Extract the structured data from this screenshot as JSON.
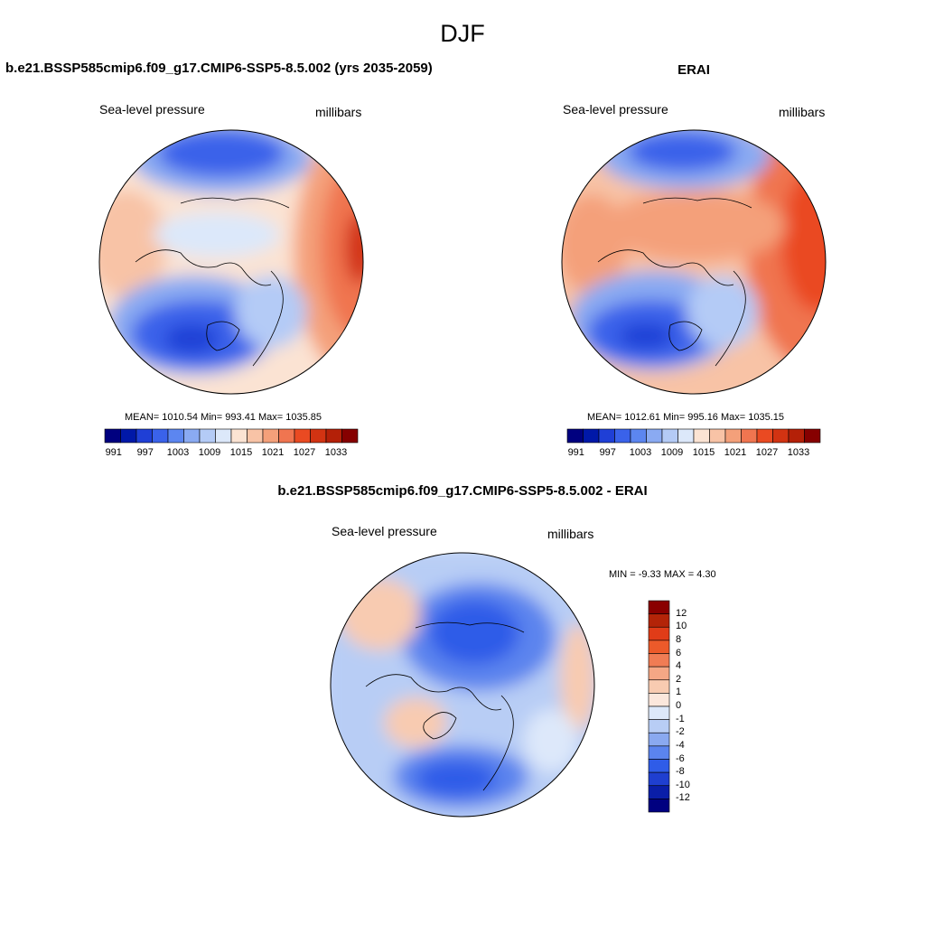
{
  "figure": {
    "title": "DJF"
  },
  "panel_model": {
    "title": "b.e21.BSSP585cmip6.f09_g17.CMIP6-SSP5-8.5.002 (yrs 2035-2059)",
    "left_label": "Sea-level pressure",
    "right_label": "millibars",
    "stats": "MEAN= 1010.54  Min= 993.41  Max= 1035.85"
  },
  "panel_obs": {
    "title": "ERAI",
    "left_label": "Sea-level pressure",
    "right_label": "millibars",
    "stats": "MEAN= 1012.61  Min= 995.16  Max= 1035.15"
  },
  "panel_diff": {
    "title": "b.e21.BSSP585cmip6.f09_g17.CMIP6-SSP5-8.5.002 - ERAI",
    "left_label": "Sea-level pressure",
    "right_label": "millibars",
    "stats": "MIN =  -9.33 MAX =   4.30"
  },
  "colorbar_abs": {
    "colors": [
      "#00007f",
      "#0018a8",
      "#1f3fd6",
      "#3a62ea",
      "#5c86f0",
      "#8aaaf2",
      "#b4cbf6",
      "#dce8fa",
      "#fbe3d3",
      "#f8c3a6",
      "#f4a07a",
      "#f07550",
      "#ea4a22",
      "#d23312",
      "#b42008",
      "#860000"
    ],
    "tick_labels": [
      "991",
      "997",
      "1003",
      "1009",
      "1015",
      "1021",
      "1027",
      "1033"
    ]
  },
  "colorbar_diff": {
    "colors": [
      "#000080",
      "#0a1ea8",
      "#1f3fd0",
      "#2f5ce8",
      "#5b84ee",
      "#8aa9f0",
      "#b8cdf5",
      "#dde8fa",
      "#fbe7dc",
      "#f8cbb1",
      "#f5a785",
      "#f07c54",
      "#ec5a2a",
      "#e03c18",
      "#b32408",
      "#8a0000"
    ],
    "tick_labels": [
      "12",
      "10",
      "8",
      "6",
      "4",
      "2",
      "1",
      "0",
      "-1",
      "-2",
      "-4",
      "-6",
      "-8",
      "-10",
      "-12"
    ]
  }
}
